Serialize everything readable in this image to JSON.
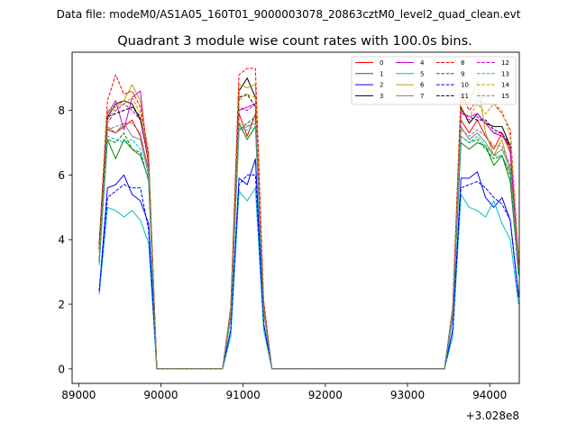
{
  "chart_data": {
    "type": "line",
    "suptitle": "Data file: modeM0/AS1A05_160T01_9000003078_20863cztM0_level2_quad_clean.evt",
    "title": "Quadrant 3 module wise count rates with 100.0s bins.",
    "xlabel": "",
    "ylabel": "",
    "x_offset_label": "+3.028e8",
    "xlim": [
      88920,
      94360
    ],
    "ylim": [
      -0.45,
      9.8
    ],
    "x_ticks": [
      89000,
      90000,
      91000,
      92000,
      93000,
      94000
    ],
    "x_tick_labels": [
      "89000",
      "90000",
      "91000",
      "92000",
      "93000",
      "94000"
    ],
    "y_ticks": [
      0,
      2,
      4,
      6,
      8
    ],
    "y_tick_labels": [
      "0",
      "2",
      "4",
      "6",
      "8"
    ],
    "legend_position": "top-right",
    "legend_columns": 4,
    "x": [
      89250,
      89350,
      89450,
      89550,
      89650,
      89750,
      89850,
      89950,
      90050,
      90150,
      90250,
      90350,
      90450,
      90550,
      90650,
      90750,
      90850,
      90950,
      91050,
      91150,
      91250,
      91350,
      91450,
      91550,
      91650,
      91750,
      91850,
      91950,
      92050,
      92150,
      92250,
      92350,
      92450,
      92550,
      92650,
      92750,
      92850,
      92950,
      93050,
      93150,
      93250,
      93350,
      93450,
      93550,
      93650,
      93750,
      93850,
      93950,
      94050,
      94150,
      94250,
      94350
    ],
    "series": [
      {
        "name": "0",
        "color": "#ff0000",
        "dash": "solid",
        "values": [
          3.8,
          7.4,
          7.3,
          7.5,
          7.7,
          7.2,
          6.2,
          0,
          0,
          0,
          0,
          0,
          0,
          0,
          0,
          0,
          1.8,
          7.9,
          7.2,
          7.9,
          2.0,
          0,
          0,
          0,
          0,
          0,
          0,
          0,
          0,
          0,
          0,
          0,
          0,
          0,
          0,
          0,
          0,
          0,
          0,
          0,
          0,
          0,
          0,
          1.8,
          7.7,
          7.3,
          7.7,
          7.2,
          6.8,
          7.3,
          6.7,
          3.2
        ]
      },
      {
        "name": "1",
        "color": "#008000",
        "dash": "solid",
        "values": [
          3.4,
          7.1,
          6.5,
          7.1,
          6.8,
          6.6,
          5.9,
          0,
          0,
          0,
          0,
          0,
          0,
          0,
          0,
          0,
          1.7,
          7.6,
          7.1,
          7.5,
          1.8,
          0,
          0,
          0,
          0,
          0,
          0,
          0,
          0,
          0,
          0,
          0,
          0,
          0,
          0,
          0,
          0,
          0,
          0,
          0,
          0,
          0,
          0,
          1.7,
          7.0,
          6.8,
          7.0,
          6.9,
          6.3,
          6.6,
          5.8,
          3.0
        ]
      },
      {
        "name": "2",
        "color": "#0000ff",
        "dash": "solid",
        "values": [
          2.4,
          5.6,
          5.7,
          6.0,
          5.4,
          5.2,
          4.5,
          0,
          0,
          0,
          0,
          0,
          0,
          0,
          0,
          0,
          1.2,
          5.9,
          5.7,
          6.5,
          1.4,
          0,
          0,
          0,
          0,
          0,
          0,
          0,
          0,
          0,
          0,
          0,
          0,
          0,
          0,
          0,
          0,
          0,
          0,
          0,
          0,
          0,
          0,
          1.2,
          5.9,
          5.9,
          6.1,
          5.3,
          5.0,
          5.3,
          4.6,
          2.3
        ]
      },
      {
        "name": "3",
        "color": "#000000",
        "dash": "solid",
        "values": [
          3.9,
          7.8,
          8.2,
          8.3,
          8.2,
          7.7,
          6.5,
          0,
          0,
          0,
          0,
          0,
          0,
          0,
          0,
          0,
          1.8,
          8.6,
          9.0,
          8.4,
          2.0,
          0,
          0,
          0,
          0,
          0,
          0,
          0,
          0,
          0,
          0,
          0,
          0,
          0,
          0,
          0,
          0,
          0,
          0,
          0,
          0,
          0,
          0,
          1.8,
          8.1,
          7.6,
          7.9,
          7.6,
          7.5,
          7.5,
          6.9,
          3.3
        ]
      },
      {
        "name": "4",
        "color": "#cc00cc",
        "dash": "solid",
        "values": [
          3.7,
          7.9,
          8.3,
          7.4,
          8.4,
          8.6,
          6.3,
          0,
          0,
          0,
          0,
          0,
          0,
          0,
          0,
          0,
          1.8,
          8.0,
          8.1,
          8.2,
          2.0,
          0,
          0,
          0,
          0,
          0,
          0,
          0,
          0,
          0,
          0,
          0,
          0,
          0,
          0,
          0,
          0,
          0,
          0,
          0,
          0,
          0,
          0,
          1.7,
          7.9,
          7.8,
          7.9,
          7.6,
          7.3,
          7.2,
          6.9,
          3.2
        ]
      },
      {
        "name": "5",
        "color": "#00c0c0",
        "dash": "solid",
        "values": [
          2.3,
          5.0,
          4.9,
          4.7,
          4.9,
          4.6,
          3.9,
          0,
          0,
          0,
          0,
          0,
          0,
          0,
          0,
          0,
          1.0,
          5.5,
          5.2,
          5.6,
          1.2,
          0,
          0,
          0,
          0,
          0,
          0,
          0,
          0,
          0,
          0,
          0,
          0,
          0,
          0,
          0,
          0,
          0,
          0,
          0,
          0,
          0,
          0,
          1.0,
          5.4,
          5.0,
          4.9,
          4.7,
          5.2,
          4.5,
          4.0,
          2.0
        ]
      },
      {
        "name": "6",
        "color": "#c0a000",
        "dash": "solid",
        "values": [
          3.8,
          8.0,
          8.1,
          8.3,
          8.8,
          8.3,
          6.6,
          0,
          0,
          0,
          0,
          0,
          0,
          0,
          0,
          0,
          1.9,
          8.8,
          8.7,
          8.8,
          2.1,
          0,
          0,
          0,
          0,
          0,
          0,
          0,
          0,
          0,
          0,
          0,
          0,
          0,
          0,
          0,
          0,
          0,
          0,
          0,
          0,
          0,
          0,
          1.9,
          8.4,
          8.2,
          8.9,
          7.3,
          6.6,
          7.1,
          6.1,
          3.1
        ]
      },
      {
        "name": "7",
        "color": "#808080",
        "dash": "solid",
        "values": [
          3.3,
          7.5,
          7.3,
          7.6,
          7.2,
          7.1,
          6.0,
          0,
          0,
          0,
          0,
          0,
          0,
          0,
          0,
          0,
          1.6,
          7.4,
          7.5,
          7.6,
          1.8,
          0,
          0,
          0,
          0,
          0,
          0,
          0,
          0,
          0,
          0,
          0,
          0,
          0,
          0,
          0,
          0,
          0,
          0,
          0,
          0,
          0,
          0,
          1.6,
          7.5,
          7.1,
          7.3,
          7.0,
          6.6,
          6.8,
          6.2,
          2.9
        ]
      },
      {
        "name": "8",
        "color": "#ff0000",
        "dash": "dashed",
        "values": [
          3.9,
          8.3,
          9.1,
          8.5,
          8.6,
          8.1,
          6.7,
          0,
          0,
          0,
          0,
          0,
          0,
          0,
          0,
          0,
          1.9,
          9.1,
          9.3,
          9.3,
          2.1,
          0,
          0,
          0,
          0,
          0,
          0,
          0,
          0,
          0,
          0,
          0,
          0,
          0,
          0,
          0,
          0,
          0,
          0,
          0,
          0,
          0,
          0,
          1.9,
          8.5,
          8.0,
          8.3,
          8.2,
          8.2,
          7.9,
          7.4,
          3.5
        ]
      },
      {
        "name": "9",
        "color": "#008000",
        "dash": "dashed",
        "values": [
          3.3,
          7.1,
          7.0,
          7.3,
          6.8,
          6.7,
          5.8,
          0,
          0,
          0,
          0,
          0,
          0,
          0,
          0,
          0,
          1.6,
          7.4,
          7.6,
          7.8,
          1.8,
          0,
          0,
          0,
          0,
          0,
          0,
          0,
          0,
          0,
          0,
          0,
          0,
          0,
          0,
          0,
          0,
          0,
          0,
          0,
          0,
          0,
          0,
          1.6,
          7.2,
          7.0,
          7.1,
          6.8,
          6.5,
          6.6,
          6.0,
          2.9
        ]
      },
      {
        "name": "10",
        "color": "#0000ff",
        "dash": "dashed",
        "values": [
          2.4,
          5.3,
          5.5,
          5.7,
          5.6,
          5.6,
          4.3,
          0,
          0,
          0,
          0,
          0,
          0,
          0,
          0,
          0,
          1.2,
          5.7,
          6.0,
          6.0,
          1.4,
          0,
          0,
          0,
          0,
          0,
          0,
          0,
          0,
          0,
          0,
          0,
          0,
          0,
          0,
          0,
          0,
          0,
          0,
          0,
          0,
          0,
          0,
          1.2,
          5.6,
          5.7,
          5.8,
          5.6,
          5.3,
          5.1,
          4.6,
          2.2
        ]
      },
      {
        "name": "11",
        "color": "#000000",
        "dash": "dashed",
        "values": [
          3.7,
          7.8,
          7.9,
          8.0,
          8.1,
          7.8,
          6.4,
          0,
          0,
          0,
          0,
          0,
          0,
          0,
          0,
          0,
          1.8,
          8.4,
          8.5,
          8.1,
          1.9,
          0,
          0,
          0,
          0,
          0,
          0,
          0,
          0,
          0,
          0,
          0,
          0,
          0,
          0,
          0,
          0,
          0,
          0,
          0,
          0,
          0,
          0,
          1.8,
          8.0,
          7.8,
          7.7,
          7.7,
          7.4,
          7.3,
          6.9,
          3.3
        ]
      },
      {
        "name": "12",
        "color": "#cc00cc",
        "dash": "dashed",
        "values": [
          3.6,
          7.6,
          8.0,
          8.2,
          8.0,
          7.7,
          6.4,
          0,
          0,
          0,
          0,
          0,
          0,
          0,
          0,
          0,
          1.8,
          8.1,
          8.0,
          8.2,
          1.9,
          0,
          0,
          0,
          0,
          0,
          0,
          0,
          0,
          0,
          0,
          0,
          0,
          0,
          0,
          0,
          0,
          0,
          0,
          0,
          0,
          0,
          0,
          1.8,
          8.0,
          7.7,
          7.8,
          7.6,
          7.3,
          7.3,
          6.8,
          3.2
        ]
      },
      {
        "name": "13",
        "color": "#00c0c0",
        "dash": "dashed",
        "values": [
          3.2,
          7.2,
          7.1,
          7.0,
          7.1,
          6.8,
          5.8,
          0,
          0,
          0,
          0,
          0,
          0,
          0,
          0,
          0,
          1.6,
          7.4,
          7.4,
          7.5,
          1.8,
          0,
          0,
          0,
          0,
          0,
          0,
          0,
          0,
          0,
          0,
          0,
          0,
          0,
          0,
          0,
          0,
          0,
          0,
          0,
          0,
          0,
          0,
          1.6,
          7.2,
          7.0,
          7.2,
          6.9,
          6.6,
          6.6,
          6.1,
          2.9
        ]
      },
      {
        "name": "14",
        "color": "#c0a000",
        "dash": "dashed",
        "values": [
          3.6,
          7.7,
          8.1,
          8.2,
          8.4,
          7.9,
          6.5,
          0,
          0,
          0,
          0,
          0,
          0,
          0,
          0,
          0,
          1.8,
          8.3,
          8.5,
          8.4,
          1.9,
          0,
          0,
          0,
          0,
          0,
          0,
          0,
          0,
          0,
          0,
          0,
          0,
          0,
          0,
          0,
          0,
          0,
          0,
          0,
          0,
          0,
          0,
          1.8,
          8.0,
          7.8,
          8.2,
          7.9,
          8.2,
          8.0,
          7.2,
          3.4
        ]
      },
      {
        "name": "15",
        "color": "#808080",
        "dash": "dashed",
        "values": [
          3.4,
          7.4,
          7.5,
          7.6,
          7.6,
          7.3,
          6.1,
          0,
          0,
          0,
          0,
          0,
          0,
          0,
          0,
          0,
          1.7,
          7.6,
          7.5,
          7.7,
          1.8,
          0,
          0,
          0,
          0,
          0,
          0,
          0,
          0,
          0,
          0,
          0,
          0,
          0,
          0,
          0,
          0,
          0,
          0,
          0,
          0,
          0,
          0,
          1.7,
          7.4,
          7.2,
          7.4,
          7.2,
          6.9,
          6.9,
          6.3,
          3.0
        ]
      }
    ]
  }
}
